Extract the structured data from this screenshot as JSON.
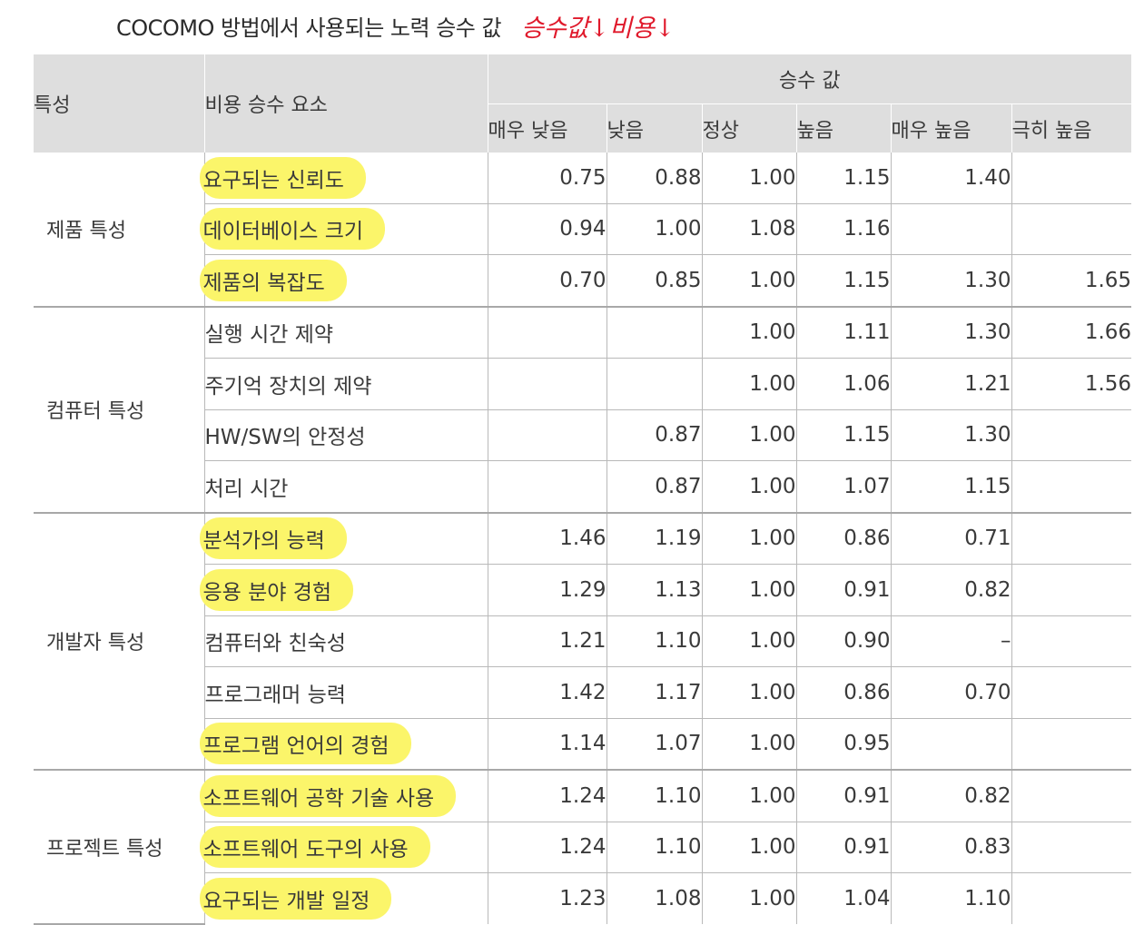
{
  "title": "COCOMO 방법에서 사용되는 노력 승수 값",
  "handwritten_note": "승수값↓비용↓",
  "headers": {
    "characteristic": "특성",
    "cost_factor": "비용 승수 요소",
    "multiplier": "승수 값",
    "levels": [
      "매우 낮음",
      "낮음",
      "정상",
      "높음",
      "매우 높음",
      "극히 높음"
    ]
  },
  "highlight_color": "#fbf56a",
  "note_color": "#e0192b",
  "groups": [
    {
      "category": "제품 특성",
      "rows": [
        {
          "factor": "요구되는 신뢰도",
          "highlighted": true,
          "values": [
            "0.75",
            "0.88",
            "1.00",
            "1.15",
            "1.40",
            ""
          ]
        },
        {
          "factor": "데이터베이스 크기",
          "highlighted": true,
          "values": [
            "0.94",
            "1.00",
            "1.08",
            "1.16",
            "",
            ""
          ]
        },
        {
          "factor": "제품의 복잡도",
          "highlighted": true,
          "values": [
            "0.70",
            "0.85",
            "1.00",
            "1.15",
            "1.30",
            "1.65"
          ]
        }
      ]
    },
    {
      "category": "컴퓨터 특성",
      "rows": [
        {
          "factor": "실행 시간 제약",
          "highlighted": false,
          "values": [
            "",
            "",
            "1.00",
            "1.11",
            "1.30",
            "1.66"
          ]
        },
        {
          "factor": "주기억 장치의 제약",
          "highlighted": false,
          "values": [
            "",
            "",
            "1.00",
            "1.06",
            "1.21",
            "1.56"
          ]
        },
        {
          "factor": "HW/SW의 안정성",
          "highlighted": false,
          "values": [
            "",
            "0.87",
            "1.00",
            "1.15",
            "1.30",
            ""
          ]
        },
        {
          "factor": "처리 시간",
          "highlighted": false,
          "values": [
            "",
            "0.87",
            "1.00",
            "1.07",
            "1.15",
            ""
          ]
        }
      ]
    },
    {
      "category": "개발자 특성",
      "rows": [
        {
          "factor": "분석가의 능력",
          "highlighted": true,
          "values": [
            "1.46",
            "1.19",
            "1.00",
            "0.86",
            "0.71",
            ""
          ]
        },
        {
          "factor": "응용 분야 경험",
          "highlighted": true,
          "values": [
            "1.29",
            "1.13",
            "1.00",
            "0.91",
            "0.82",
            ""
          ]
        },
        {
          "factor": "컴퓨터와 친숙성",
          "highlighted": false,
          "values": [
            "1.21",
            "1.10",
            "1.00",
            "0.90",
            "–",
            ""
          ]
        },
        {
          "factor": "프로그래머 능력",
          "highlighted": false,
          "values": [
            "1.42",
            "1.17",
            "1.00",
            "0.86",
            "0.70",
            ""
          ]
        },
        {
          "factor": "프로그램 언어의 경험",
          "highlighted": true,
          "values": [
            "1.14",
            "1.07",
            "1.00",
            "0.95",
            "",
            ""
          ]
        }
      ]
    },
    {
      "category": "프로젝트 특성",
      "rows": [
        {
          "factor": "소프트웨어 공학 기술 사용",
          "highlighted": true,
          "values": [
            "1.24",
            "1.10",
            "1.00",
            "0.91",
            "0.82",
            ""
          ]
        },
        {
          "factor": "소프트웨어 도구의 사용",
          "highlighted": true,
          "values": [
            "1.24",
            "1.10",
            "1.00",
            "0.91",
            "0.83",
            ""
          ]
        },
        {
          "factor": "요구되는 개발 일정",
          "highlighted": true,
          "values": [
            "1.23",
            "1.08",
            "1.00",
            "1.04",
            "1.10",
            ""
          ]
        }
      ]
    }
  ]
}
